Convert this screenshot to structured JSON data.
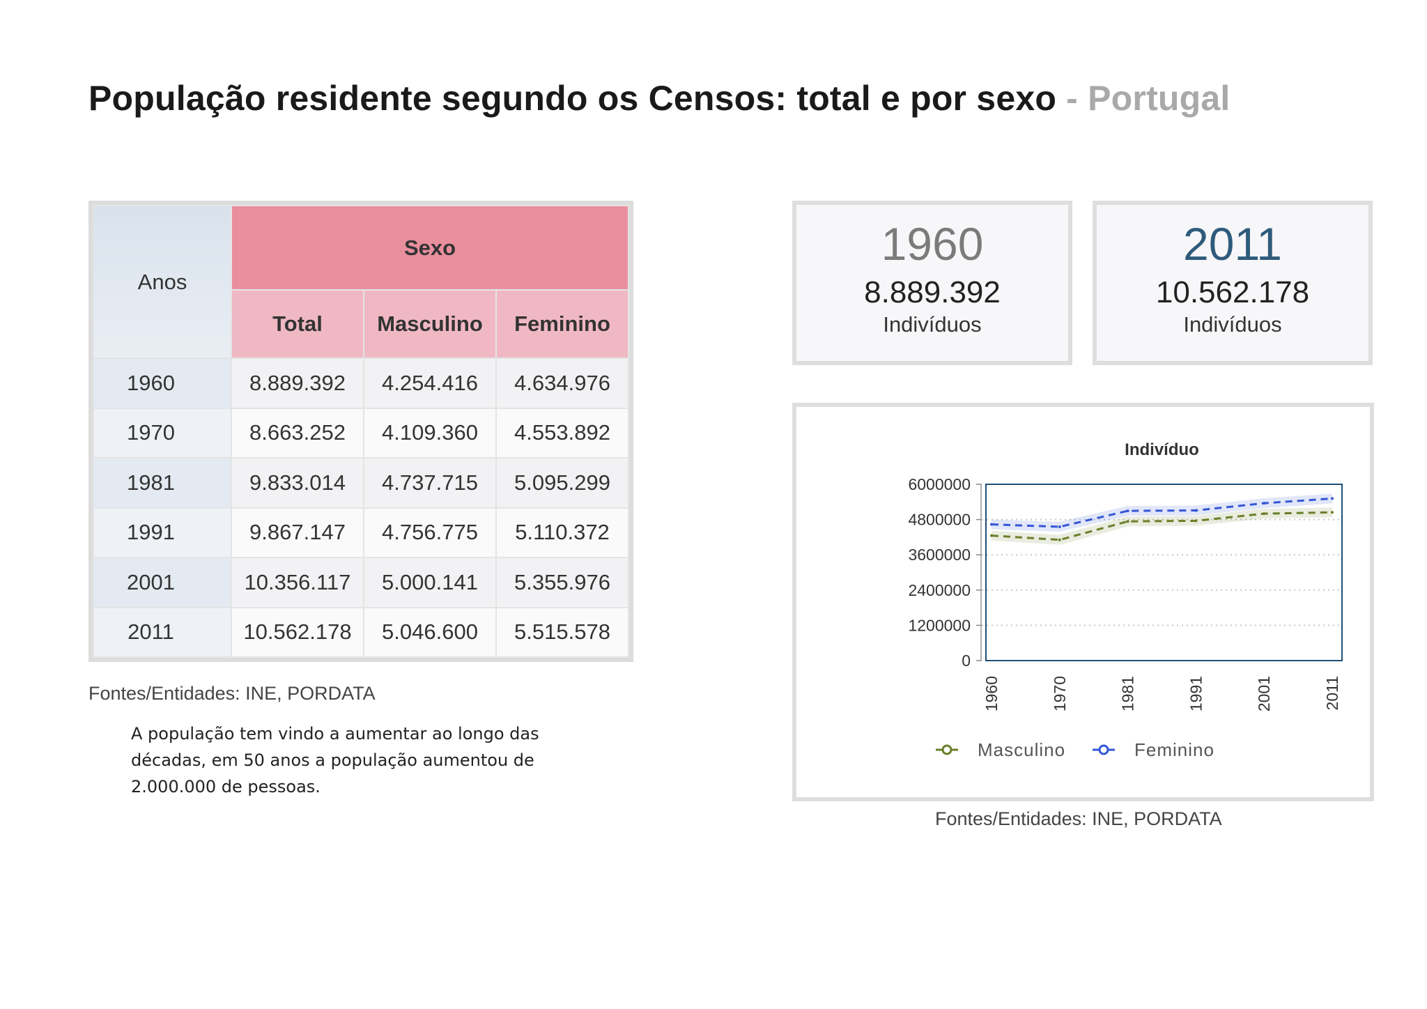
{
  "title": {
    "main": "População residente segundo os Censos: total e por sexo",
    "sep": " - ",
    "country": "Portugal"
  },
  "table": {
    "anos_header": "Anos",
    "sexo_header": "Sexo",
    "columns": [
      "Total",
      "Masculino",
      "Feminino"
    ],
    "rows": [
      {
        "year": "1960",
        "total": "8.889.392",
        "masc": "4.254.416",
        "fem": "4.634.976"
      },
      {
        "year": "1970",
        "total": "8.663.252",
        "masc": "4.109.360",
        "fem": "4.553.892"
      },
      {
        "year": "1981",
        "total": "9.833.014",
        "masc": "4.737.715",
        "fem": "5.095.299"
      },
      {
        "year": "1991",
        "total": "9.867.147",
        "masc": "4.756.775",
        "fem": "5.110.372"
      },
      {
        "year": "2001",
        "total": "10.356.117",
        "masc": "5.000.141",
        "fem": "5.355.976"
      },
      {
        "year": "2011",
        "total": "10.562.178",
        "masc": "5.046.600",
        "fem": "5.515.578"
      }
    ]
  },
  "source_left": "Fontes/Entidades: INE, PORDATA",
  "note": "A população tem vindo a aumentar ao longo das décadas, em 50 anos a população aumentou de 2.000.000 de pessoas.",
  "cards": [
    {
      "year": "1960",
      "value": "8.889.392",
      "unit": "Indivíduos",
      "color": "#7b7b7b"
    },
    {
      "year": "2011",
      "value": "10.562.178",
      "unit": "Indivíduos",
      "color": "#2f5b7b"
    }
  ],
  "source_right": "Fontes/Entidades: INE, PORDATA",
  "chart_data": {
    "type": "line",
    "title": "Indivíduo",
    "categories": [
      "1960",
      "1970",
      "1981",
      "1991",
      "2001",
      "2011"
    ],
    "series": [
      {
        "name": "Masculino",
        "values": [
          4254416,
          4109360,
          4737715,
          4756775,
          5000141,
          5046600
        ],
        "color": "#6b7f2a"
      },
      {
        "name": "Feminino",
        "values": [
          4634976,
          4553892,
          5095299,
          5110372,
          5355976,
          5515578
        ],
        "color": "#3556d6"
      }
    ],
    "ylim": [
      0,
      6000000
    ],
    "yticks": [
      "6000000",
      "4800000",
      "3600000",
      "2400000",
      "1200000",
      "0"
    ],
    "ytick_values": [
      6000000,
      4800000,
      3600000,
      2400000,
      1200000,
      0
    ],
    "legend": "bottom"
  }
}
